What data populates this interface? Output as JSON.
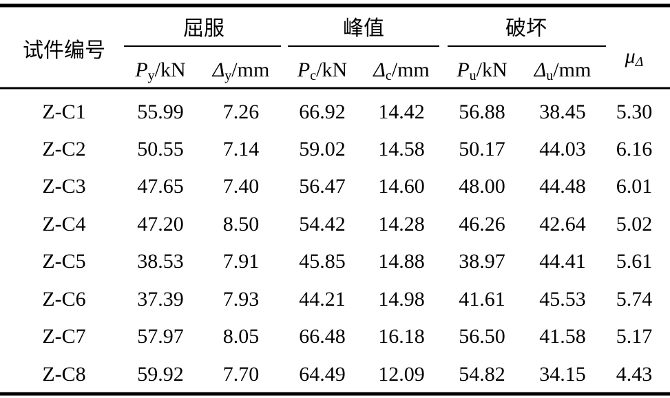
{
  "table": {
    "corner": "试件编号",
    "groups": [
      "屈服",
      "峰值",
      "破坏"
    ],
    "columns": [
      {
        "symbol": "P",
        "sub": "y",
        "unit": "/kN"
      },
      {
        "symbol": "Δ",
        "sub": "y",
        "unit": "/mm"
      },
      {
        "symbol": "P",
        "sub": "c",
        "unit": "/kN"
      },
      {
        "symbol": "Δ",
        "sub": "c",
        "unit": "/mm"
      },
      {
        "symbol": "P",
        "sub": "u",
        "unit": "/kN"
      },
      {
        "symbol": "Δ",
        "sub": "u",
        "unit": "/mm"
      },
      {
        "symbol": "μ",
        "sub": "Δ"
      }
    ],
    "rows": [
      [
        "Z-C1",
        "55.99",
        "7.26",
        "66.92",
        "14.42",
        "56.88",
        "38.45",
        "5.30"
      ],
      [
        "Z-C2",
        "50.55",
        "7.14",
        "59.02",
        "14.58",
        "50.17",
        "44.03",
        "6.16"
      ],
      [
        "Z-C3",
        "47.65",
        "7.40",
        "56.47",
        "14.60",
        "48.00",
        "44.48",
        "6.01"
      ],
      [
        "Z-C4",
        "47.20",
        "8.50",
        "54.42",
        "14.28",
        "46.26",
        "42.64",
        "5.02"
      ],
      [
        "Z-C5",
        "38.53",
        "7.91",
        "45.85",
        "14.88",
        "38.97",
        "44.41",
        "5.61"
      ],
      [
        "Z-C6",
        "37.39",
        "7.93",
        "44.21",
        "14.98",
        "41.61",
        "45.53",
        "5.74"
      ],
      [
        "Z-C7",
        "57.97",
        "8.05",
        "66.48",
        "16.18",
        "56.50",
        "41.58",
        "5.17"
      ],
      [
        "Z-C8",
        "59.92",
        "7.70",
        "64.49",
        "12.09",
        "54.82",
        "34.15",
        "4.43"
      ]
    ]
  }
}
